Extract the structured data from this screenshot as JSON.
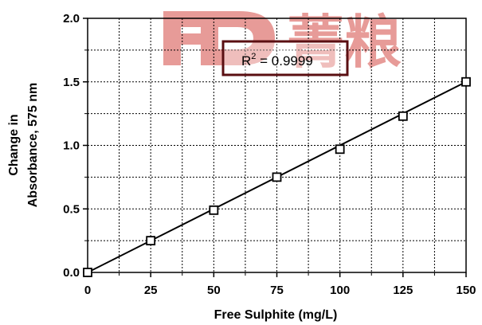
{
  "chart_data": {
    "type": "scatter",
    "title": "",
    "xlabel": "Free Sulphite (mg/L)",
    "ylabel_line1": "Change in",
    "ylabel_line2": "Absorbance, 575 nm",
    "xlim": [
      0,
      150
    ],
    "ylim": [
      0,
      2.0
    ],
    "x_ticks": [
      0,
      25,
      50,
      75,
      100,
      125,
      150
    ],
    "x_tick_labels": [
      "0",
      "25",
      "50",
      "75",
      "100",
      "125",
      "150"
    ],
    "y_ticks": [
      0,
      0.5,
      1.0,
      1.5,
      2.0
    ],
    "y_tick_labels": [
      "0.0",
      "0.5",
      "1.0",
      "1.5",
      "2.0"
    ],
    "grid": true,
    "series": [
      {
        "x": [
          0,
          25,
          50,
          75,
          100,
          125,
          150
        ],
        "y": [
          0.0,
          0.25,
          0.49,
          0.75,
          0.97,
          1.23,
          1.5
        ],
        "marker": "open-square"
      }
    ],
    "fit_line": {
      "x": [
        0,
        150
      ],
      "y": [
        0.0,
        1.5
      ]
    },
    "annotation": {
      "label": "R",
      "superscript": "2",
      "value_text": " = 0.9999"
    },
    "watermark": {
      "text": "FD 菁粮",
      "color": "#d9534f"
    }
  }
}
